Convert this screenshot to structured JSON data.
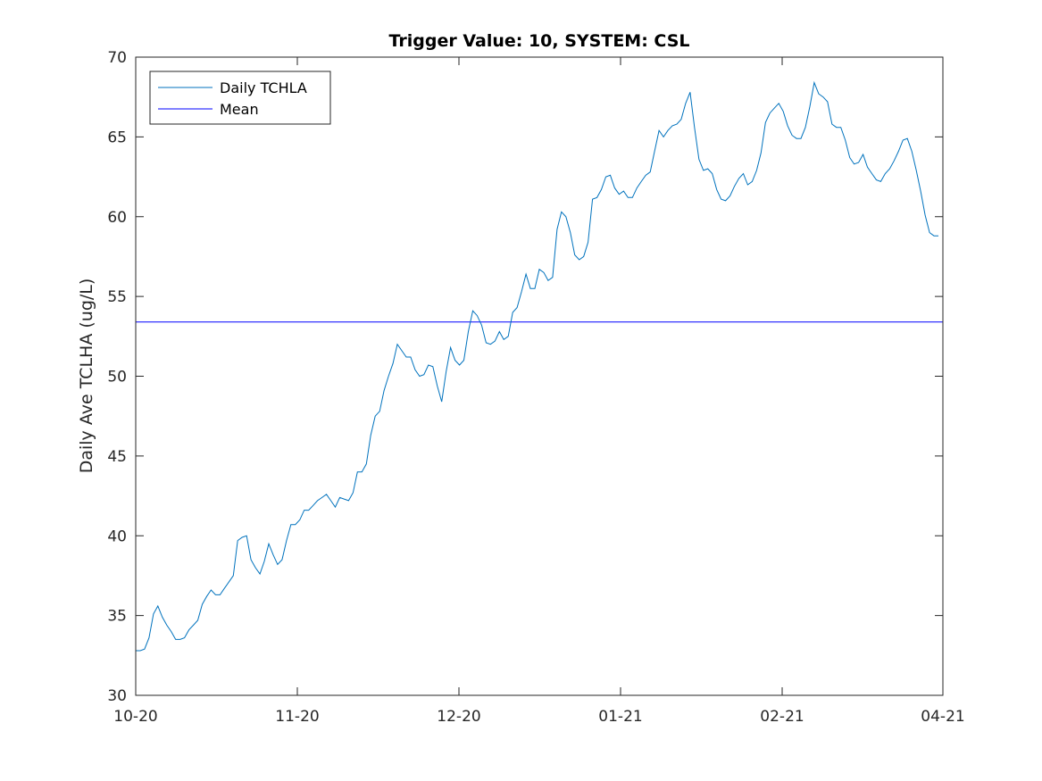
{
  "chart_data": {
    "type": "line",
    "title": "Trigger Value: 10, SYSTEM: CSL",
    "xlabel": "",
    "ylabel": "Daily Ave TCLHA (ug/L)",
    "x_tick_labels": [
      "10-20",
      "11-20",
      "12-20",
      "01-21",
      "02-21",
      "04-21"
    ],
    "y_ticks": [
      30,
      35,
      40,
      45,
      50,
      55,
      60,
      65,
      70
    ],
    "ylim": [
      30,
      70
    ],
    "grid": false,
    "legend_position": "top-left",
    "series": [
      {
        "name": "Daily TCHLA",
        "color": "#0072BD",
        "values": [
          32.8,
          32.8,
          32.9,
          33.6,
          35.1,
          35.6,
          34.9,
          34.4,
          34.0,
          33.5,
          33.5,
          33.6,
          34.1,
          34.4,
          34.7,
          35.7,
          36.2,
          36.6,
          36.3,
          36.3,
          36.7,
          37.1,
          37.5,
          39.7,
          39.9,
          40.0,
          38.5,
          38.0,
          37.6,
          38.4,
          39.5,
          38.8,
          38.2,
          38.5,
          39.7,
          40.7,
          40.7,
          41.0,
          41.6,
          41.6,
          41.9,
          42.2,
          42.4,
          42.6,
          42.2,
          41.8,
          42.4,
          42.3,
          42.2,
          42.7,
          44.0,
          44.0,
          44.5,
          46.3,
          47.5,
          47.8,
          49.1,
          50.0,
          50.8,
          52.0,
          51.6,
          51.2,
          51.2,
          50.4,
          50.0,
          50.1,
          50.7,
          50.6,
          49.4,
          48.4,
          50.3,
          51.8,
          51.0,
          50.7,
          51.0,
          52.8,
          54.1,
          53.8,
          53.2,
          52.1,
          52.0,
          52.2,
          52.8,
          52.3,
          52.5,
          54.0,
          54.3,
          55.3,
          56.4,
          55.5,
          55.5,
          56.7,
          56.5,
          56.0,
          56.2,
          59.2,
          60.3,
          60.0,
          59.0,
          57.6,
          57.3,
          57.5,
          58.4,
          61.1,
          61.2,
          61.7,
          62.5,
          62.6,
          61.8,
          61.4,
          61.6,
          61.2,
          61.2,
          61.8,
          62.2,
          62.6,
          62.8,
          64.1,
          65.4,
          65.0,
          65.4,
          65.7,
          65.8,
          66.1,
          67.1,
          67.8,
          65.6,
          63.6,
          62.9,
          63.0,
          62.7,
          61.7,
          61.1,
          61.0,
          61.3,
          61.9,
          62.4,
          62.7,
          62.0,
          62.2,
          62.9,
          64.0,
          65.9,
          66.5,
          66.8,
          67.1,
          66.6,
          65.7,
          65.1,
          64.9,
          64.9,
          65.6,
          66.9,
          68.4,
          67.7,
          67.5,
          67.2,
          65.8,
          65.6,
          65.6,
          64.8,
          63.7,
          63.3,
          63.4,
          63.9,
          63.1,
          62.7,
          62.3,
          62.2,
          62.7,
          63.0,
          63.5,
          64.1,
          64.8,
          64.9,
          64.1,
          62.9,
          61.6,
          60.1,
          59.0,
          58.8,
          58.8
        ]
      },
      {
        "name": "Mean",
        "color": "#0000FF",
        "values": [
          53.4
        ]
      }
    ]
  }
}
